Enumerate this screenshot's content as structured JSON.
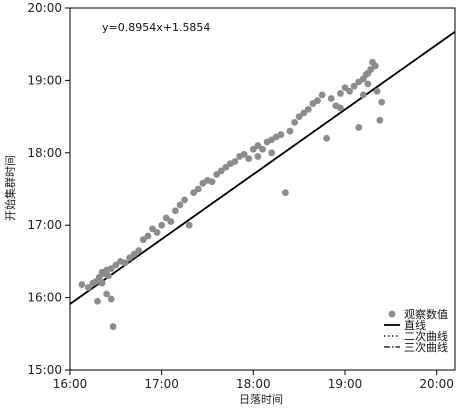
{
  "chart_data": {
    "type": "scatter",
    "xlabel": "日落时间",
    "ylabel": "开始集群时间",
    "x_unit_note": "hours",
    "xlim": [
      16,
      20.2
    ],
    "ylim": [
      15,
      20
    ],
    "x_ticks": [
      16,
      17,
      18,
      19,
      20
    ],
    "x_tick_labels": [
      "16:00",
      "17:00",
      "18:00",
      "19:00",
      "20:00"
    ],
    "y_ticks": [
      15,
      16,
      17,
      18,
      19,
      20
    ],
    "y_tick_labels": [
      "15:00",
      "16:00",
      "17:00",
      "18:00",
      "19:00",
      "20:00"
    ],
    "annotation": "y=0.8954x+1.5854",
    "legend": {
      "position": "bottom-right",
      "entries": [
        "观察数值",
        "直线",
        "二次曲线",
        "三次曲线"
      ]
    },
    "series": [
      {
        "name": "观察数值",
        "kind": "points",
        "color": "#8c8c8c",
        "x": [
          16.13,
          16.2,
          16.25,
          16.28,
          16.32,
          16.35,
          16.38,
          16.4,
          16.42,
          16.45,
          16.3,
          16.47,
          16.5,
          16.55,
          16.6,
          16.65,
          16.7,
          16.75,
          16.8,
          16.85,
          16.9,
          16.95,
          17.0,
          17.05,
          17.1,
          17.15,
          17.2,
          17.25,
          17.35,
          17.4,
          17.45,
          17.5,
          17.55,
          17.6,
          17.65,
          17.7,
          17.75,
          17.8,
          17.85,
          17.9,
          17.95,
          18.0,
          18.05,
          18.1,
          18.15,
          18.2,
          18.25,
          18.3,
          18.35,
          18.4,
          18.45,
          18.5,
          18.55,
          18.6,
          18.65,
          18.7,
          18.75,
          18.8,
          18.85,
          18.9,
          18.95,
          19.0,
          19.05,
          19.1,
          19.15,
          19.2,
          19.23,
          19.25,
          19.28,
          19.3,
          19.33,
          19.35,
          19.38,
          19.4,
          17.3,
          18.2,
          16.45,
          16.35,
          19.15,
          18.95,
          16.4,
          19.25,
          19.2,
          18.05
        ],
        "y": [
          16.18,
          16.14,
          16.2,
          16.22,
          16.28,
          16.35,
          16.33,
          16.38,
          16.3,
          16.4,
          15.95,
          15.6,
          16.45,
          16.5,
          16.48,
          16.55,
          16.6,
          16.65,
          16.8,
          16.85,
          16.95,
          16.9,
          17.0,
          17.1,
          17.05,
          17.2,
          17.28,
          17.35,
          17.45,
          17.5,
          17.58,
          17.62,
          17.6,
          17.7,
          17.75,
          17.8,
          17.85,
          17.88,
          17.95,
          17.98,
          17.92,
          18.05,
          18.1,
          18.05,
          18.15,
          18.18,
          18.22,
          18.25,
          17.45,
          18.3,
          18.42,
          18.5,
          18.55,
          18.6,
          18.68,
          18.72,
          18.8,
          18.2,
          18.75,
          18.65,
          18.82,
          18.9,
          18.85,
          18.92,
          18.98,
          19.02,
          19.08,
          19.1,
          19.15,
          19.25,
          19.2,
          18.85,
          18.45,
          18.7,
          17.0,
          18.0,
          15.98,
          16.2,
          18.35,
          18.62,
          16.05,
          18.95,
          18.8,
          17.95
        ]
      },
      {
        "name": "直线",
        "kind": "line",
        "style": "solid",
        "color": "#000000",
        "coef": [
          1.5854,
          0.8954
        ]
      },
      {
        "name": "二次曲线",
        "kind": "line",
        "style": "dotted",
        "color": "#000000",
        "coef": [
          1.5854,
          0.8954
        ]
      },
      {
        "name": "三次曲线",
        "kind": "line",
        "style": "dashdot",
        "color": "#000000",
        "coef": [
          1.5854,
          0.8954
        ]
      }
    ]
  }
}
